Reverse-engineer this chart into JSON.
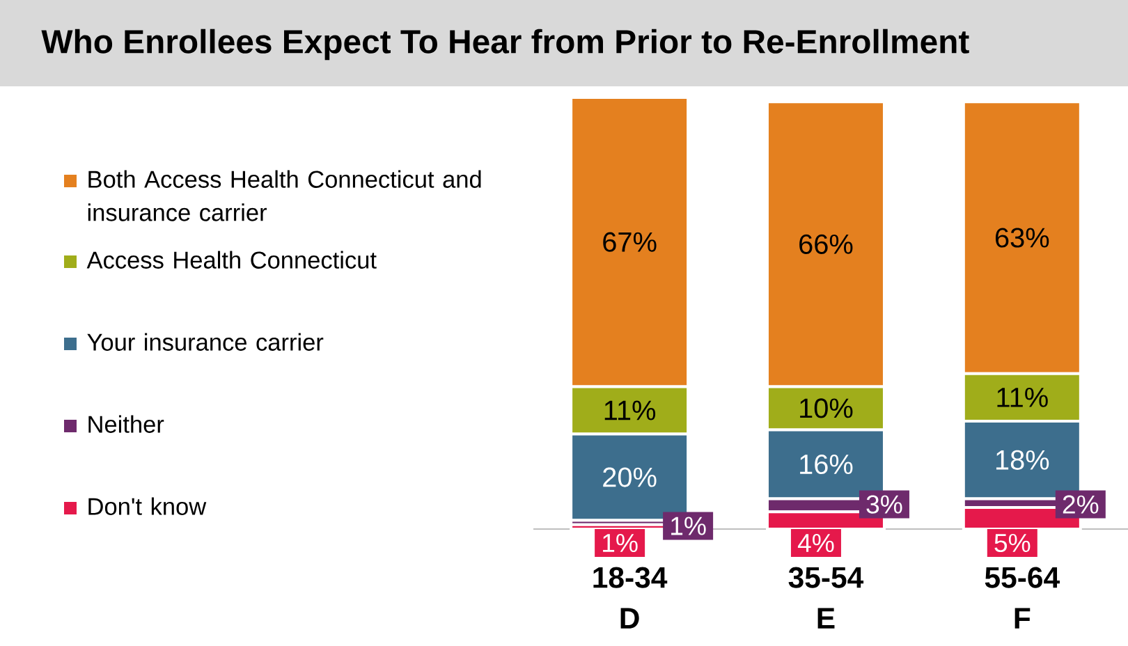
{
  "chart_data": {
    "type": "bar",
    "title": "Who Enrollees Expect To Hear from Prior to Re-Enrollment",
    "categories": [
      "18-34 D",
      "35-54 E",
      "55-64 F"
    ],
    "stacked": true,
    "legend": "left",
    "data_labels": true,
    "series": [
      {
        "name": "Don't know",
        "color": "#e5194b",
        "values": [
          1,
          4,
          5
        ],
        "value_labels": [
          "1%",
          "4%",
          "5%"
        ]
      },
      {
        "name": "Neither",
        "color": "#6e2a6c",
        "values": [
          1,
          3,
          2
        ],
        "value_labels": [
          "1%",
          "3%",
          "2%"
        ]
      },
      {
        "name": "Your insurance carrier",
        "color": "#3d6e8d",
        "values": [
          20,
          16,
          18
        ],
        "value_labels": [
          "20%",
          "16%",
          "18%"
        ]
      },
      {
        "name": "Access Health Connecticut",
        "color": "#a0ad1a",
        "values": [
          11,
          10,
          11
        ],
        "value_labels": [
          "11%",
          "10%",
          "11%"
        ]
      },
      {
        "name": "Both Access Health Connecticut and insurance carrier",
        "color": "#e4801f",
        "values": [
          67,
          66,
          63
        ],
        "value_labels": [
          "67%",
          "66%",
          "63%"
        ]
      }
    ]
  }
}
